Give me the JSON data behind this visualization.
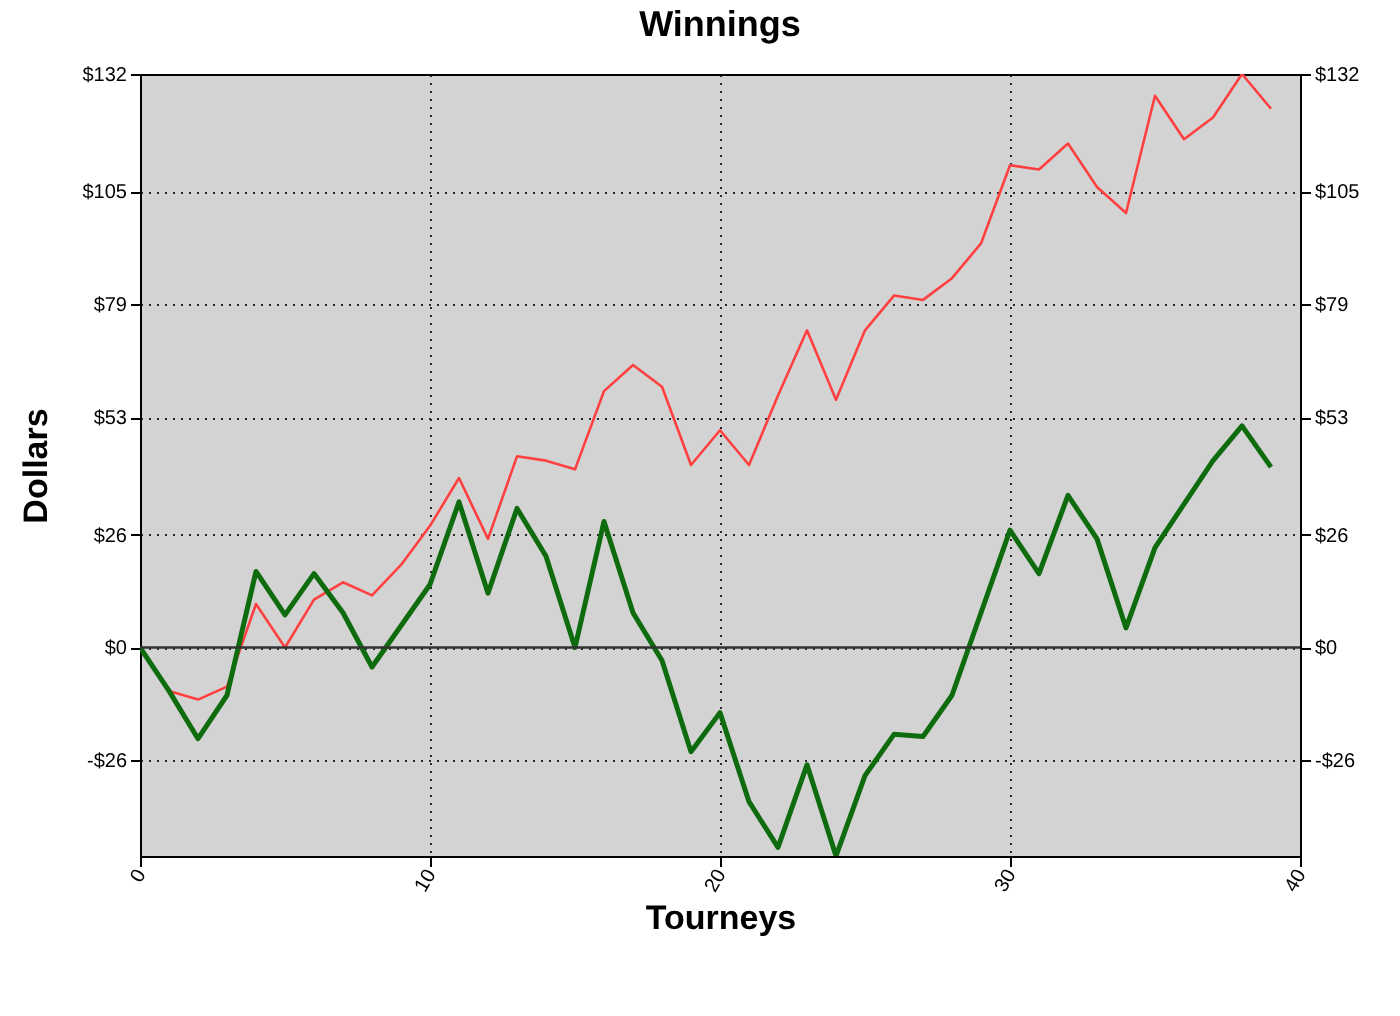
{
  "chart_data": {
    "type": "line",
    "title": "Winnings",
    "xlabel": "Tourneys",
    "ylabel": "Dollars",
    "x": [
      0,
      1,
      2,
      3,
      4,
      5,
      6,
      7,
      8,
      9,
      10,
      11,
      12,
      13,
      14,
      15,
      16,
      17,
      18,
      19,
      20,
      21,
      22,
      23,
      24,
      25,
      26,
      27,
      28,
      29,
      30,
      31,
      32,
      33,
      34,
      35,
      36,
      37,
      38,
      39
    ],
    "series": [
      {
        "color": "#ff4040",
        "values": [
          0,
          -10,
          -12,
          -9,
          10,
          0,
          11,
          15,
          12,
          19,
          28,
          39,
          25,
          44,
          43,
          41,
          59,
          65,
          60,
          42,
          50,
          42,
          58,
          73,
          57,
          73,
          81,
          80,
          85,
          93,
          111,
          110,
          116,
          106,
          100,
          127,
          117,
          122,
          132,
          124
        ]
      },
      {
        "color": "#0e6b0e",
        "values": [
          0,
          -10,
          -21,
          -11,
          17.5,
          7.5,
          17,
          8,
          -4.5,
          5,
          14.5,
          33.5,
          12.5,
          32,
          21,
          0,
          29,
          8,
          -3,
          -24,
          -15,
          -35.5,
          -46,
          -27,
          -48,
          -29.5,
          -20,
          -20.5,
          -11,
          8,
          27,
          17,
          35,
          25,
          4.5,
          23,
          33,
          43,
          51,
          41.5
        ]
      }
    ],
    "xlim": [
      0,
      40
    ],
    "xticks": [
      0,
      10,
      20,
      30,
      40
    ],
    "ylim": [
      -48,
      132
    ],
    "yticks": [
      {
        "value": 132,
        "label": "$132"
      },
      {
        "value": 105,
        "label": "$105"
      },
      {
        "value": 79,
        "label": "$79"
      },
      {
        "value": 53,
        "label": "$53"
      },
      {
        "value": 26,
        "label": "$26"
      },
      {
        "value": 0,
        "label": "$0"
      },
      {
        "value": -26,
        "label": "-$26"
      }
    ],
    "y2lim": [
      -48,
      132
    ],
    "y2ticks": [
      {
        "value": 132,
        "label": "$132"
      },
      {
        "value": 105,
        "label": "$105"
      },
      {
        "value": 79,
        "label": "$79"
      },
      {
        "value": 53,
        "label": "$53"
      },
      {
        "value": 26,
        "label": "$26"
      },
      {
        "value": 0,
        "label": "$0"
      },
      {
        "value": -26,
        "label": "-$26"
      }
    ],
    "ref_lines": [
      {
        "axis": "y",
        "value": 0,
        "color": "#333333"
      }
    ],
    "grid": true,
    "marker": "none",
    "line_style": "solid"
  }
}
